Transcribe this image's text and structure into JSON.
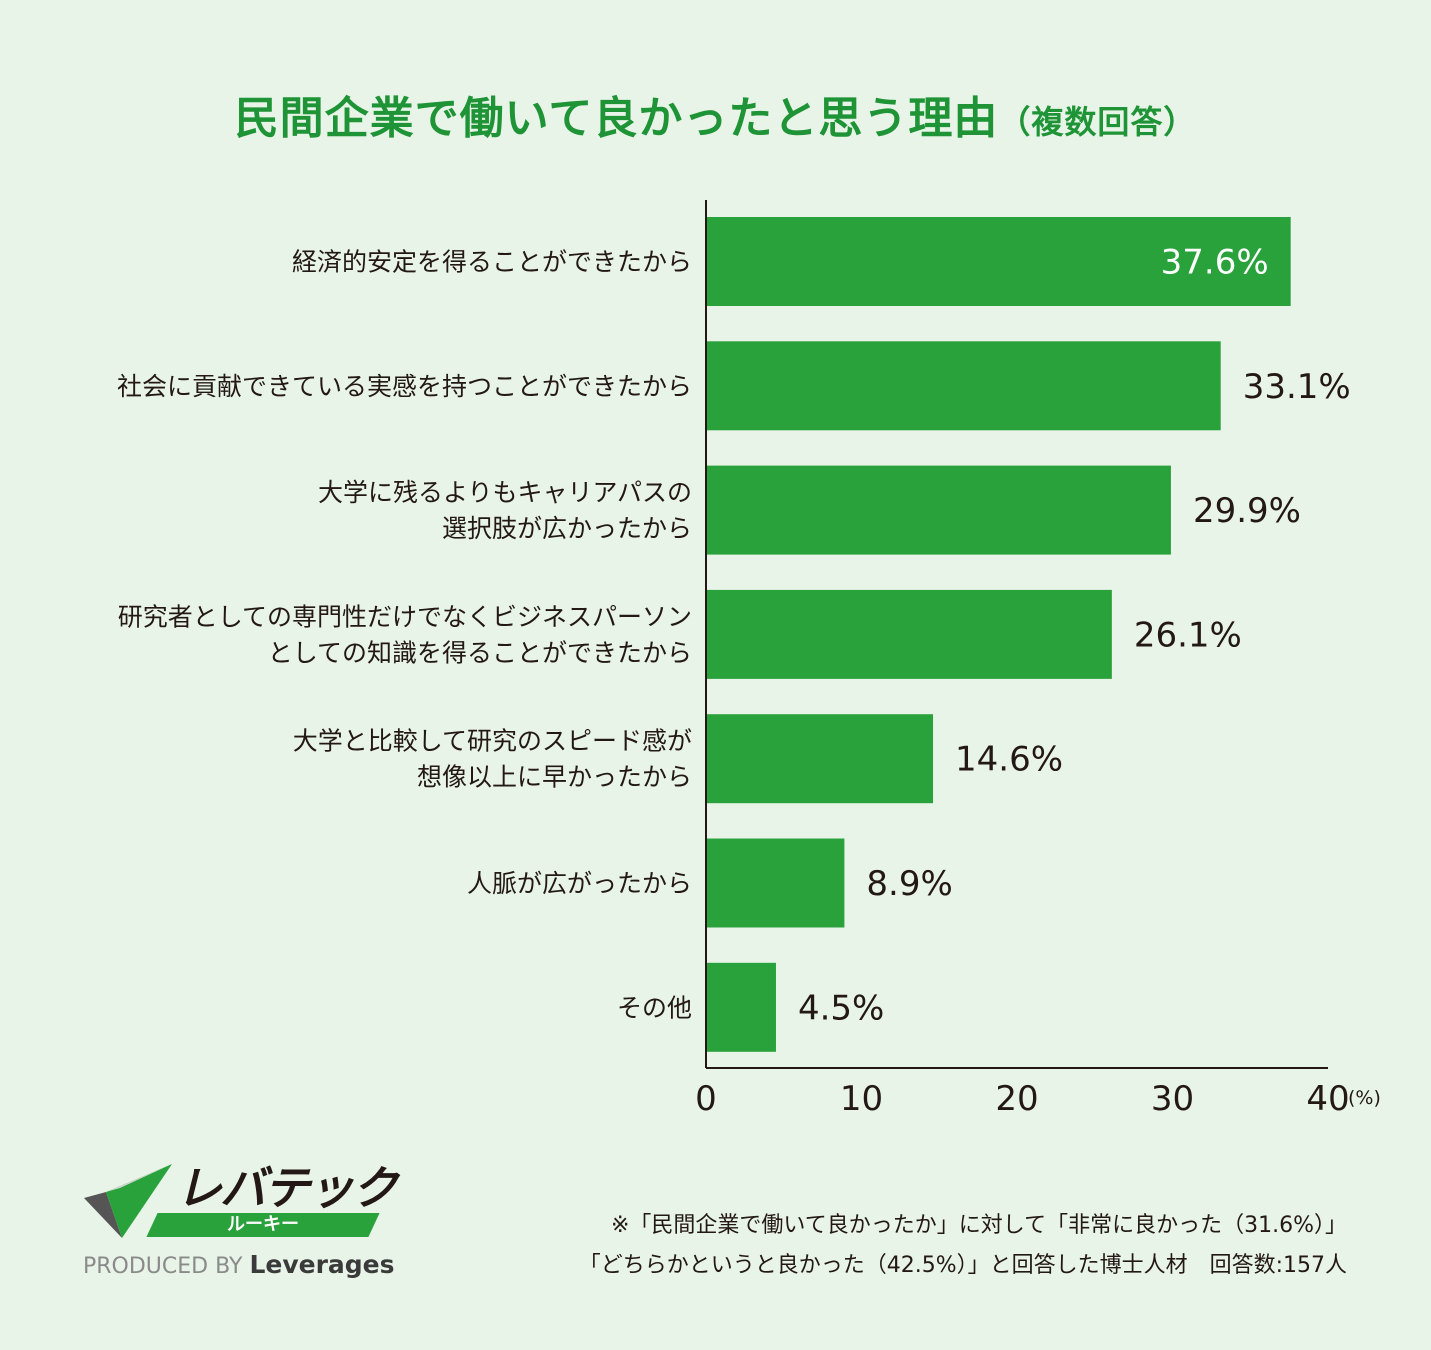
{
  "title": {
    "main": "民間企業で働いて良かったと思う理由",
    "sub": "（複数回答）"
  },
  "chart_data": {
    "type": "bar",
    "orientation": "horizontal",
    "categories": [
      [
        "経済的安定を得ることができたから"
      ],
      [
        "社会に貢献できている実感を持つことができたから"
      ],
      [
        "大学に残るよりもキャリアパスの",
        "選択肢が広かったから"
      ],
      [
        "研究者としての専門性だけでなくビジネスパーソン",
        "としての知識を得ることができたから"
      ],
      [
        "大学と比較して研究のスピード感が",
        "想像以上に早かったから"
      ],
      [
        "人脈が広がったから"
      ],
      [
        "その他"
      ]
    ],
    "values": [
      37.6,
      33.1,
      29.9,
      26.1,
      14.6,
      8.9,
      4.5
    ],
    "value_labels": [
      "37.6%",
      "33.1%",
      "29.9%",
      "26.1%",
      "14.6%",
      "8.9%",
      "4.5%"
    ],
    "xlim": [
      0,
      40
    ],
    "xticks": [
      "0",
      "10",
      "20",
      "30",
      "40"
    ],
    "xunit": "(%)",
    "bar_color": "#2aa23c",
    "grid": false
  },
  "logo": {
    "name": "レバテック",
    "sub": "ルーキー",
    "produced": "PRODUCED BY",
    "brand": "Leverages"
  },
  "footnote": {
    "line1": "※「民間企業で働いて良かったか」に対して「非常に良かった（31.6%）」",
    "line2": "「どちらかというと良かった（42.5%）」と回答した博士人材　回答数:157人"
  }
}
